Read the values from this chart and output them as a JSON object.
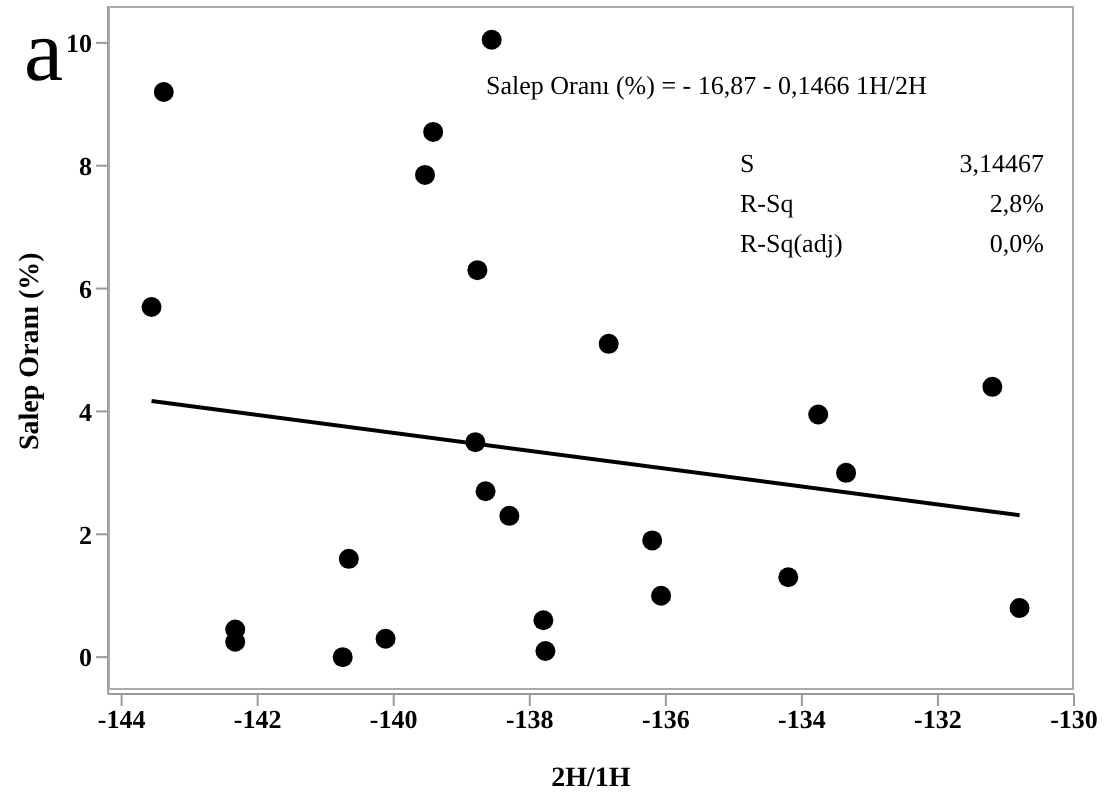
{
  "chart_data": {
    "type": "scatter",
    "xlabel": "2H/1H",
    "ylabel": "Salep Oranı (%)",
    "annotations": [
      "a",
      "Salep Oranı (%) = - 16,87 - 0,1466 1H/2H",
      "S",
      "3,14467",
      "R-Sq",
      "2,8%",
      "R-Sq(adj)",
      "0,0%"
    ],
    "xlim": [
      -144.2,
      -130
    ],
    "xticks": [
      -144,
      -142,
      -140,
      -138,
      -136,
      -134,
      -132,
      -130
    ],
    "ylim": [
      -0.6,
      10.6
    ],
    "yticks": [
      0,
      2,
      4,
      6,
      8,
      10
    ],
    "marker": "circle",
    "series": [
      {
        "color": "#000000",
        "x": [
          -143.56,
          -143.38,
          -142.33,
          -142.33,
          -140.75,
          -140.66,
          -140.12,
          -139.54,
          -139.42,
          -138.77,
          -138.8,
          -138.65,
          -138.3,
          -138.56,
          -137.8,
          -137.77,
          -136.84,
          -136.2,
          -136.07,
          -134.2,
          -133.76,
          -133.35,
          -131.2,
          -130.8
        ],
        "values": [
          5.7,
          9.2,
          0.45,
          0.25,
          0.0,
          1.6,
          0.3,
          7.85,
          8.55,
          6.3,
          3.5,
          2.7,
          2.3,
          10.05,
          0.6,
          0.1,
          5.1,
          1.9,
          1.0,
          1.3,
          3.95,
          3.0,
          4.4,
          0.8
        ]
      },
      {
        "type": "line",
        "color": "#000000",
        "marker": "none",
        "line_style": "solid",
        "x": [
          -143.56,
          -130.8
        ],
        "values": [
          4.17,
          2.31
        ]
      }
    ]
  }
}
